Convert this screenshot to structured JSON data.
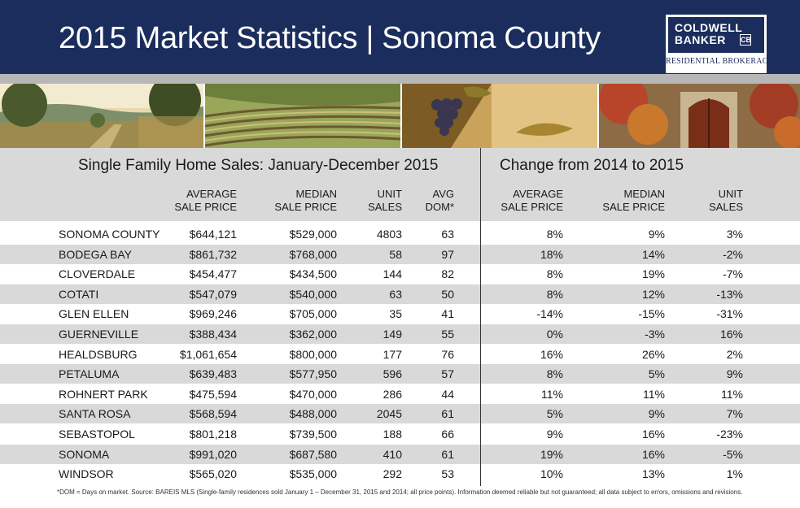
{
  "header": {
    "title": "2015 Market Statistics | Sonoma County",
    "logo": {
      "line1": "COLDWELL",
      "line2": "BANKER",
      "mark": "CB",
      "subtitle": "RESIDENTIAL BROKERAGE"
    }
  },
  "left_section": {
    "title": "Single Family Home Sales: January-December 2015",
    "columns": [
      "AVERAGE\nSALE PRICE",
      "MEDIAN\nSALE PRICE",
      "UNIT\nSALES",
      "AVG\nDOM*"
    ]
  },
  "right_section": {
    "title": "Change from 2014 to 2015",
    "columns": [
      "AVERAGE\nSALE PRICE",
      "MEDIAN\nSALE PRICE",
      "UNIT\nSALES"
    ]
  },
  "rows": [
    {
      "name": "SONOMA COUNTY",
      "avg": "$644,121",
      "median": "$529,000",
      "units": "4803",
      "dom": "63",
      "chg_avg": "8%",
      "chg_median": "9%",
      "chg_units": "3%"
    },
    {
      "name": "BODEGA BAY",
      "avg": "$861,732",
      "median": "$768,000",
      "units": "58",
      "dom": "97",
      "chg_avg": "18%",
      "chg_median": "14%",
      "chg_units": "-2%"
    },
    {
      "name": "CLOVERDALE",
      "avg": "$454,477",
      "median": "$434,500",
      "units": "144",
      "dom": "82",
      "chg_avg": "8%",
      "chg_median": "19%",
      "chg_units": "-7%"
    },
    {
      "name": "COTATI",
      "avg": "$547,079",
      "median": "$540,000",
      "units": "63",
      "dom": "50",
      "chg_avg": "8%",
      "chg_median": "12%",
      "chg_units": "-13%"
    },
    {
      "name": "GLEN ELLEN",
      "avg": "$969,246",
      "median": "$705,000",
      "units": "35",
      "dom": "41",
      "chg_avg": "-14%",
      "chg_median": "-15%",
      "chg_units": "-31%"
    },
    {
      "name": "GUERNEVILLE",
      "avg": "$388,434",
      "median": "$362,000",
      "units": "149",
      "dom": "55",
      "chg_avg": "0%",
      "chg_median": "-3%",
      "chg_units": "16%"
    },
    {
      "name": "HEALDSBURG",
      "avg": "$1,061,654",
      "median": "$800,000",
      "units": "177",
      "dom": "76",
      "chg_avg": "16%",
      "chg_median": "26%",
      "chg_units": "2%"
    },
    {
      "name": "PETALUMA",
      "avg": "$639,483",
      "median": "$577,950",
      "units": "596",
      "dom": "57",
      "chg_avg": "8%",
      "chg_median": "5%",
      "chg_units": "9%"
    },
    {
      "name": "ROHNERT PARK",
      "avg": "$475,594",
      "median": "$470,000",
      "units": "286",
      "dom": "44",
      "chg_avg": "11%",
      "chg_median": "11%",
      "chg_units": "11%"
    },
    {
      "name": "SANTA ROSA",
      "avg": "$568,594",
      "median": "$488,000",
      "units": "2045",
      "dom": "61",
      "chg_avg": "5%",
      "chg_median": "9%",
      "chg_units": "7%"
    },
    {
      "name": "SEBASTOPOL",
      "avg": "$801,218",
      "median": "$739,500",
      "units": "188",
      "dom": "66",
      "chg_avg": "9%",
      "chg_median": "16%",
      "chg_units": "-23%"
    },
    {
      "name": "SONOMA",
      "avg": "$991,020",
      "median": "$687,580",
      "units": "410",
      "dom": "61",
      "chg_avg": "19%",
      "chg_median": "16%",
      "chg_units": "-5%"
    },
    {
      "name": "WINDSOR",
      "avg": "$565,020",
      "median": "$535,000",
      "units": "292",
      "dom": "53",
      "chg_avg": "10%",
      "chg_median": "13%",
      "chg_units": "1%"
    }
  ],
  "footnote": "*DOM = Days on market. Source: BAREIS MLS (Single-family residences sold January 1 – December 31, 2015 and 2014; all price points). Information deemed reliable but not guaranteed; all data subject to errors, omissions and revisions.",
  "colors": {
    "navy": "#1b2d5c",
    "band": "#d9d9d9",
    "strip": "#b7b7b7"
  },
  "photos": [
    "vineyard-landscape-photo",
    "vineyard-rows-photo",
    "grapes-photo",
    "winery-door-photo"
  ]
}
